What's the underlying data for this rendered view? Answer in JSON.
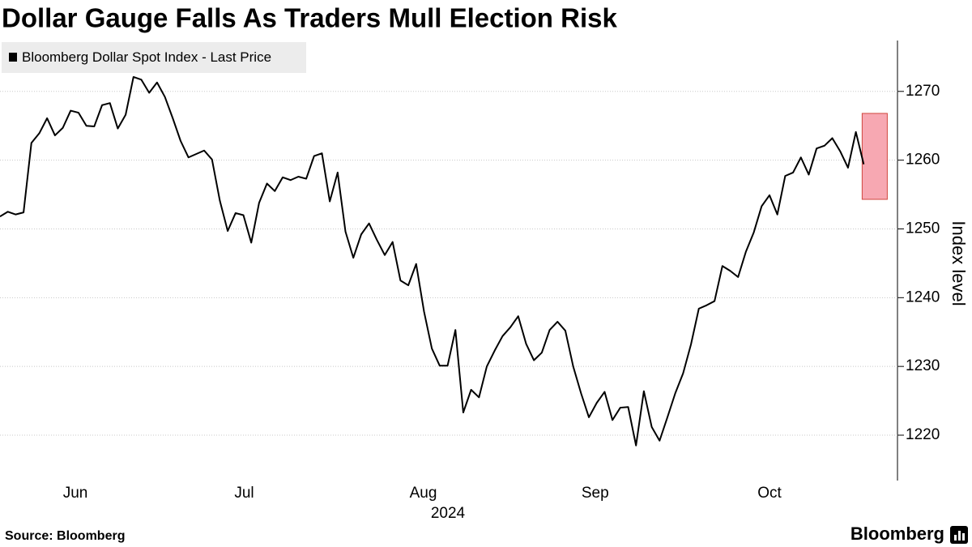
{
  "chart_data": {
    "type": "line",
    "title": "Dollar Gauge Falls As Traders Mull Election Risk",
    "y_label": "Index level",
    "x_sublabel": "2024",
    "source": "Source: Bloomberg",
    "brand": "Bloomberg",
    "series": [
      {
        "name": "Bloomberg Dollar Spot Index - Last Price",
        "color": "#000000",
        "values": [
          1251.8,
          1252.5,
          1252.1,
          1252.4,
          1262.5,
          1263.9,
          1266.1,
          1263.6,
          1264.7,
          1267.2,
          1266.9,
          1265.0,
          1264.9,
          1268.0,
          1268.3,
          1264.6,
          1266.6,
          1272.1,
          1271.7,
          1269.8,
          1271.3,
          1269.2,
          1266.1,
          1262.8,
          1260.4,
          1260.9,
          1261.4,
          1260.1,
          1254.1,
          1249.7,
          1252.3,
          1252.0,
          1248.0,
          1253.8,
          1256.6,
          1255.5,
          1257.5,
          1257.1,
          1257.6,
          1257.3,
          1260.6,
          1261.0,
          1254.0,
          1258.2,
          1249.6,
          1245.8,
          1249.2,
          1250.8,
          1248.4,
          1246.2,
          1248.1,
          1242.5,
          1241.8,
          1244.9,
          1238.0,
          1232.6,
          1230.1,
          1230.1,
          1235.3,
          1223.3,
          1226.6,
          1225.5,
          1230.0,
          1232.3,
          1234.4,
          1235.7,
          1237.3,
          1233.3,
          1230.9,
          1232.0,
          1235.3,
          1236.5,
          1235.2,
          1230.0,
          1226.1,
          1222.6,
          1224.7,
          1226.3,
          1222.2,
          1224.0,
          1224.1,
          1218.5,
          1226.4,
          1221.2,
          1219.2,
          1222.6,
          1226.1,
          1229.0,
          1233.2,
          1238.4,
          1238.9,
          1239.5,
          1244.6,
          1243.9,
          1243.0,
          1246.7,
          1249.5,
          1253.3,
          1254.9,
          1252.1,
          1257.7,
          1258.2,
          1260.4,
          1257.9,
          1261.7,
          1262.1,
          1263.2,
          1261.3,
          1258.9,
          1264.1,
          1259.4
        ]
      }
    ],
    "xlim": [
      0,
      114.3
    ],
    "xticks": [
      {
        "value": 9.6,
        "label": "Jun"
      },
      {
        "value": 31.1,
        "label": "Jul"
      },
      {
        "value": 53.9,
        "label": "Aug"
      },
      {
        "value": 75.8,
        "label": "Sep"
      },
      {
        "value": 98.0,
        "label": "Oct"
      }
    ],
    "ylim": [
      1213.4,
      1277.4
    ],
    "yticks": [
      1220,
      1230,
      1240,
      1250,
      1260,
      1270
    ],
    "grid": true,
    "highlight": {
      "x": [
        109.8,
        113.0
      ],
      "y": [
        1254.3,
        1266.8
      ],
      "color": "#f7a8b2"
    }
  }
}
